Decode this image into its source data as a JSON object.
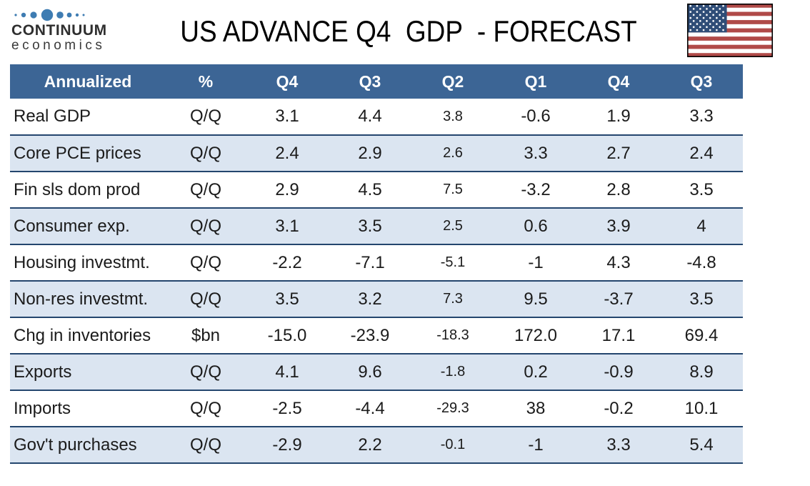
{
  "logo": {
    "name": "CONTINUUM",
    "subtitle": "economics",
    "dot_color": "#3e7cb2"
  },
  "title": "US ADVANCE Q4  GDP  - FORECAST",
  "flag": {
    "icon": "us-flag-icon",
    "stripe_red": "#b04a48",
    "canton_blue": "#2f4d77",
    "border": "#000000"
  },
  "table": {
    "colors": {
      "header_bg": "#3c6595",
      "header_text": "#ffffff",
      "alt_row_bg": "#dbe5f1",
      "row_border": "#24466e"
    },
    "header": [
      "Annualized",
      "%",
      "Q4",
      "Q3",
      "Q2",
      "Q1",
      "Q4",
      "Q3"
    ],
    "rows": [
      {
        "label": "Real GDP",
        "unit": "Q/Q",
        "values": [
          "3.1",
          "4.4",
          "3.8",
          "-0.6",
          "1.9",
          "3.3"
        ]
      },
      {
        "label": "Core PCE prices",
        "unit": "Q/Q",
        "values": [
          "2.4",
          "2.9",
          "2.6",
          "3.3",
          "2.7",
          "2.4"
        ]
      },
      {
        "label": "Fin sls dom prod",
        "unit": "Q/Q",
        "values": [
          "2.9",
          "4.5",
          "7.5",
          "-3.2",
          "2.8",
          "3.5"
        ]
      },
      {
        "label": "Consumer exp.",
        "unit": "Q/Q",
        "values": [
          "3.1",
          "3.5",
          "2.5",
          "0.6",
          "3.9",
          "4"
        ]
      },
      {
        "label": "Housing investmt.",
        "unit": "Q/Q",
        "values": [
          "-2.2",
          "-7.1",
          "-5.1",
          "-1",
          "4.3",
          "-4.8"
        ]
      },
      {
        "label": "Non-res investmt.",
        "unit": "Q/Q",
        "values": [
          "3.5",
          "3.2",
          "7.3",
          "9.5",
          "-3.7",
          "3.5"
        ]
      },
      {
        "label": "Chg in inventories",
        "unit": "$bn",
        "values": [
          "-15.0",
          "-23.9",
          "-18.3",
          "172.0",
          "17.1",
          "69.4"
        ]
      },
      {
        "label": "Exports",
        "unit": "Q/Q",
        "values": [
          "4.1",
          "9.6",
          "-1.8",
          "0.2",
          "-0.9",
          "8.9"
        ]
      },
      {
        "label": "Imports",
        "unit": "Q/Q",
        "values": [
          "-2.5",
          "-4.4",
          "-29.3",
          "38",
          "-0.2",
          "10.1"
        ]
      },
      {
        "label": "Gov't purchases",
        "unit": "Q/Q",
        "values": [
          "-2.9",
          "2.2",
          "-0.1",
          "-1",
          "3.3",
          "5.4"
        ]
      }
    ]
  }
}
